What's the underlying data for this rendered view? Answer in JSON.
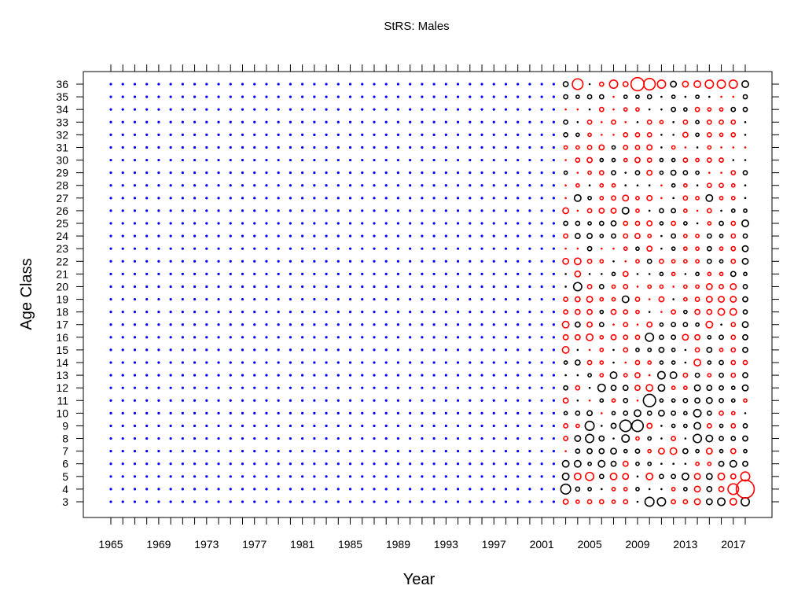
{
  "chart_data": {
    "type": "scatter",
    "title": "StRS: Males",
    "xlabel": "Year",
    "ylabel": "Age Class",
    "xlim": [
      1964,
      2018.5
    ],
    "ylim": [
      2,
      37
    ],
    "x_ticks": [
      1965,
      1969,
      1973,
      1977,
      1981,
      1985,
      1989,
      1993,
      1997,
      2001,
      2005,
      2009,
      2013,
      2017
    ],
    "y_ticks": [
      3,
      4,
      5,
      6,
      7,
      8,
      9,
      10,
      11,
      12,
      13,
      14,
      15,
      16,
      17,
      18,
      19,
      20,
      21,
      22,
      23,
      24,
      25,
      26,
      27,
      28,
      29,
      30,
      31,
      32,
      33,
      34,
      35,
      36
    ],
    "grid": false,
    "colors": {
      "positive": "#000000",
      "negative": "#ff0000",
      "no_data": "#0000ff"
    },
    "no_data_years": [
      1965,
      2002
    ],
    "observed_years": [
      2003,
      2018
    ],
    "ages": [
      3,
      36
    ],
    "residuals_by_year": {
      "2003": [
        -0.6,
        1.2,
        0.8,
        0.8,
        -0.2,
        -0.5,
        -0.5,
        0.4,
        -0.6,
        0.5,
        0.3,
        0.4,
        -0.8,
        -0.6,
        -0.8,
        -0.5,
        -0.5,
        0.3,
        0.3,
        -0.7,
        -0.2,
        -0.5,
        0.5,
        -0.7,
        -0.2,
        -0.3,
        0.4,
        -0.3,
        -0.4,
        0.5,
        0.5,
        -0.3,
        0.5,
        0.6
      ],
      "2004": [
        -0.4,
        0.5,
        -0.8,
        0.8,
        0.5,
        0.7,
        -0.4,
        0.5,
        0.3,
        -0.5,
        0.3,
        0.6,
        0.2,
        -0.6,
        0.6,
        -0.6,
        -0.6,
        1.0,
        -0.7,
        -0.8,
        -0.3,
        0.6,
        0.5,
        -0.3,
        0.8,
        -0.4,
        -0.2,
        -0.5,
        -0.4,
        0.4,
        0.3,
        -0.3,
        0.4,
        -1.3
      ],
      "2005": [
        -0.5,
        0.4,
        -1.0,
        0.4,
        0.6,
        1.0,
        1.1,
        0.6,
        -0.3,
        0.3,
        0.4,
        -0.5,
        -0.3,
        -0.8,
        -0.6,
        -0.6,
        -0.7,
        -0.5,
        0.2,
        -0.5,
        0.5,
        0.6,
        0.4,
        -0.5,
        0.4,
        0.2,
        -0.4,
        -0.6,
        -0.5,
        -0.4,
        -0.5,
        0.3,
        0.5,
        0.3
      ],
      "2006": [
        -0.5,
        0.3,
        0.5,
        0.8,
        0.6,
        0.6,
        0.3,
        -0.3,
        0.4,
        0.9,
        -0.4,
        -0.4,
        -0.4,
        -0.4,
        0.5,
        0.4,
        -0.4,
        0.5,
        0.3,
        -0.4,
        -0.3,
        0.4,
        0.5,
        -0.6,
        -0.4,
        -0.4,
        -0.5,
        0.4,
        -0.6,
        -0.3,
        -0.3,
        -0.5,
        0.5,
        -0.5
      ],
      "2007": [
        -0.4,
        -0.4,
        -0.8,
        0.6,
        0.7,
        0.3,
        0.6,
        0.4,
        -0.4,
        0.6,
        0.8,
        0.2,
        0.3,
        -0.6,
        -0.2,
        -0.6,
        -0.4,
        -0.4,
        0.4,
        0.3,
        -0.3,
        0.5,
        0.6,
        -0.6,
        -0.5,
        -0.4,
        0.5,
        0.4,
        0.4,
        -0.3,
        -0.5,
        -0.3,
        -0.3,
        -1.0
      ],
      "2008": [
        -0.5,
        -0.4,
        -0.7,
        -0.6,
        0.4,
        0.9,
        1.4,
        0.5,
        0.5,
        0.6,
        -0.4,
        -0.3,
        -0.5,
        -0.5,
        -0.5,
        -0.5,
        0.8,
        -0.5,
        -0.6,
        -0.3,
        -0.4,
        -0.5,
        -0.5,
        0.8,
        -0.7,
        0.2,
        0.2,
        -0.4,
        -0.5,
        -0.5,
        -0.3,
        -0.4,
        0.4,
        -0.6
      ],
      "2009": [
        0.3,
        0.4,
        0.3,
        0.4,
        0.5,
        -0.4,
        1.4,
        0.8,
        -0.3,
        -0.6,
        -0.6,
        -0.5,
        0.4,
        -0.5,
        -0.2,
        -0.4,
        -0.5,
        -0.3,
        0.2,
        -0.4,
        0.4,
        -0.6,
        -0.5,
        -0.4,
        -0.4,
        0.2,
        0.5,
        -0.6,
        -0.5,
        -0.5,
        0.3,
        -0.4,
        0.4,
        -1.6
      ],
      "2010": [
        1.1,
        0.3,
        -0.8,
        0.4,
        -0.4,
        0.4,
        -0.6,
        0.5,
        1.5,
        -0.8,
        -0.3,
        -0.4,
        0.4,
        1.0,
        -0.6,
        0.3,
        -0.2,
        -0.4,
        0.3,
        0.5,
        -0.6,
        -0.4,
        -0.6,
        0.3,
        -0.6,
        0.3,
        -0.6,
        -0.5,
        -0.6,
        -0.5,
        -0.5,
        0.3,
        0.5,
        -1.4
      ],
      "2011": [
        1.0,
        0.3,
        0.5,
        0.3,
        -0.7,
        0.3,
        0.3,
        0.7,
        0.4,
        0.8,
        0.9,
        0.4,
        0.6,
        0.5,
        0.4,
        -0.3,
        -0.6,
        -0.4,
        0.4,
        -0.5,
        0.3,
        0.3,
        0.4,
        0.5,
        -0.3,
        -0.3,
        0.4,
        0.4,
        0.3,
        0.2,
        -0.4,
        0.3,
        0.3,
        -1.0
      ],
      "2012": [
        -0.5,
        -0.4,
        0.5,
        0.3,
        -0.8,
        -0.5,
        0.4,
        0.5,
        0.4,
        -0.4,
        0.8,
        0.4,
        0.4,
        0.5,
        0.5,
        -0.5,
        0.3,
        -0.3,
        -0.4,
        -0.4,
        0.4,
        0.5,
        -0.5,
        0.5,
        0.3,
        0.4,
        0.6,
        0.4,
        -0.4,
        0.3,
        0.3,
        0.5,
        0.4,
        0.7
      ],
      "2013": [
        -0.5,
        0.4,
        0.8,
        0.3,
        0.6,
        0.3,
        0.4,
        0.4,
        0.5,
        -0.4,
        -0.5,
        0.2,
        0.2,
        -0.7,
        0.5,
        0.4,
        -0.4,
        -0.4,
        0.3,
        -0.4,
        -0.4,
        -0.4,
        0.4,
        -0.4,
        -0.5,
        -0.4,
        0.5,
        -0.5,
        -0.3,
        -0.6,
        -0.5,
        0.4,
        0.3,
        -0.7
      ],
      "2014": [
        -0.7,
        -0.7,
        -0.7,
        -0.4,
        0.4,
        1.0,
        0.8,
        0.9,
        0.6,
        0.7,
        0.5,
        -0.8,
        -0.5,
        -0.6,
        0.4,
        -0.6,
        -0.5,
        -0.4,
        0.4,
        -0.4,
        -0.4,
        -0.4,
        0.3,
        -0.3,
        -0.4,
        0.3,
        0.4,
        -0.4,
        0.3,
        0.4,
        0.4,
        -0.5,
        0.4,
        -0.8
      ],
      "2015": [
        0.7,
        0.6,
        0.7,
        -0.4,
        -0.7,
        0.8,
        -0.5,
        0.5,
        0.7,
        0.6,
        -0.4,
        0.4,
        0.6,
        0.4,
        -0.8,
        -0.6,
        -0.7,
        -0.7,
        -0.4,
        0.5,
        0.5,
        0.5,
        -0.4,
        -0.5,
        0.8,
        -0.5,
        -0.3,
        -0.5,
        -0.4,
        -0.5,
        -0.5,
        -0.4,
        0.3,
        -1.0
      ],
      "2016": [
        0.9,
        -0.6,
        -0.8,
        0.6,
        0.4,
        0.5,
        0.4,
        -0.5,
        0.5,
        0.5,
        0.5,
        0.5,
        -0.4,
        0.5,
        0.3,
        -0.8,
        -0.7,
        -0.5,
        -0.4,
        0.4,
        -0.4,
        0.4,
        0.5,
        0.3,
        -0.4,
        -0.5,
        -0.3,
        -0.5,
        -0.3,
        -0.4,
        -0.5,
        -0.4,
        -0.3,
        -1.0
      ],
      "2017": [
        -0.8,
        -1.3,
        -0.6,
        0.8,
        -0.6,
        0.5,
        -0.5,
        -0.4,
        0.4,
        0.4,
        -0.5,
        -0.5,
        -0.5,
        -0.5,
        -0.5,
        -0.8,
        -0.7,
        -0.7,
        0.6,
        -0.5,
        -0.5,
        -0.5,
        -0.5,
        0.4,
        -0.4,
        -0.4,
        -0.5,
        0.3,
        -0.3,
        -0.5,
        -0.5,
        0.5,
        -0.3,
        -1.0
      ],
      "2018": [
        1.0,
        -2.2,
        -1.1,
        0.6,
        0.4,
        0.6,
        0.5,
        0.3,
        -0.4,
        0.7,
        0.6,
        -0.5,
        0.6,
        0.6,
        0.7,
        0.5,
        0.6,
        0.5,
        0.4,
        0.7,
        0.7,
        0.5,
        0.8,
        0.4,
        0.3,
        0.3,
        0.5,
        0.3,
        -0.3,
        0.3,
        0.3,
        0.5,
        0.5,
        0.8
      ]
    }
  }
}
